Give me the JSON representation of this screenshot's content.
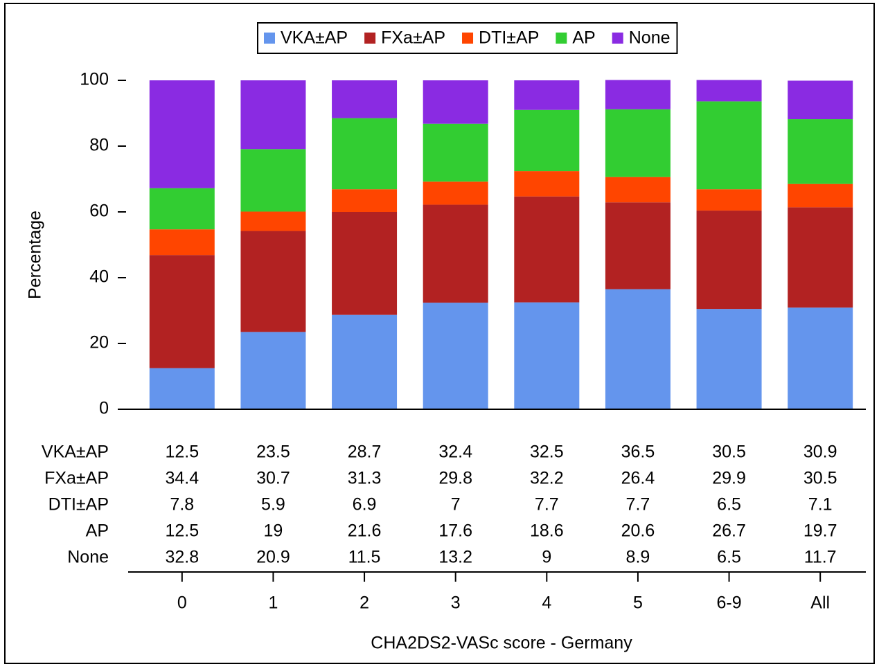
{
  "chart_data": {
    "type": "stacked_bar",
    "xlabel": "CHA2DS2-VASc score - Germany",
    "ylabel": "Percentage",
    "categories": [
      "0",
      "1",
      "2",
      "3",
      "4",
      "5",
      "6-9",
      "All"
    ],
    "series": [
      {
        "name": "VKA±AP",
        "color": "#6495ed",
        "values": [
          12.5,
          23.5,
          28.7,
          32.4,
          32.5,
          36.5,
          30.5,
          30.9
        ]
      },
      {
        "name": "FXa±AP",
        "color": "#b22222",
        "values": [
          34.4,
          30.7,
          31.3,
          29.8,
          32.2,
          26.4,
          29.9,
          30.5
        ]
      },
      {
        "name": "DTI±AP",
        "color": "#ff4500",
        "values": [
          7.8,
          5.9,
          6.9,
          7,
          7.7,
          7.7,
          6.5,
          7.1
        ]
      },
      {
        "name": "AP",
        "color": "#32cd32",
        "values": [
          12.5,
          19,
          21.6,
          17.6,
          18.6,
          20.6,
          26.7,
          19.7
        ]
      },
      {
        "name": "None",
        "color": "#8a2be2",
        "values": [
          32.8,
          20.9,
          11.5,
          13.2,
          9,
          8.9,
          6.5,
          11.7
        ]
      }
    ],
    "ylim": [
      0,
      100
    ],
    "yticks": [
      0,
      20,
      40,
      60,
      80,
      100
    ],
    "legend": "top",
    "grid": false,
    "data_table": true
  }
}
